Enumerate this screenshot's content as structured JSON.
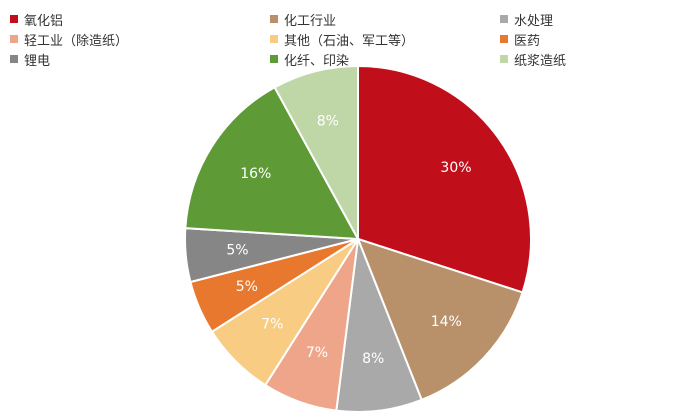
{
  "chart_data": {
    "type": "pie",
    "title": "",
    "legend_position": "top",
    "start": "12 o'clock, clockwise",
    "slices": [
      {
        "label": "氧化铝",
        "value": 30,
        "value_label": "30%",
        "color": "#c00e1a"
      },
      {
        "label": "化工行业",
        "value": 14,
        "value_label": "14%",
        "color": "#b8916a"
      },
      {
        "label": "水处理",
        "value": 8,
        "value_label": "8%",
        "color": "#a9a9a9"
      },
      {
        "label": "轻工业（除造纸）",
        "value": 7,
        "value_label": "7%",
        "color": "#eea58a"
      },
      {
        "label": "其他（石油、军工等）",
        "value": 7,
        "value_label": "7%",
        "color": "#f9cc83"
      },
      {
        "label": "医药",
        "value": 5,
        "value_label": "5%",
        "color": "#e8782e"
      },
      {
        "label": "锂电",
        "value": 5,
        "value_label": "5%",
        "color": "#868686"
      },
      {
        "label": "化纤、印染",
        "value": 16,
        "value_label": "16%",
        "color": "#5e9a35"
      },
      {
        "label": "纸浆造纸",
        "value": 8,
        "value_label": "8%",
        "color": "#bfd6a6"
      }
    ]
  }
}
